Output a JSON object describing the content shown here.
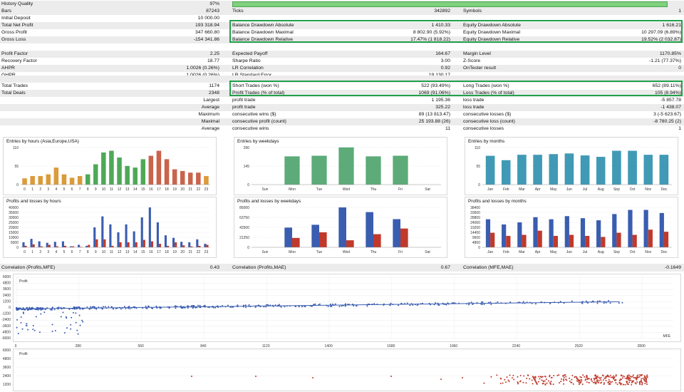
{
  "history_quality": {
    "label": "History Quality",
    "value": "97%",
    "level": 0.97
  },
  "rows": [
    {
      "c1l": "Bars",
      "c1v": "87243",
      "c2l": "Ticks",
      "c2v": "342892",
      "c3l": "Symbols",
      "c3v": "1"
    },
    {
      "c1l": "Initial Deposit",
      "c1v": "10 000.00",
      "c2l": "",
      "c2v": "",
      "c3l": "",
      "c3v": ""
    },
    {
      "c1l": "Total Net Profit",
      "c1v": "193 318.94",
      "c2l": "Balance Drawdown Absolute",
      "c2v": "1 410.33",
      "c3l": "Equity Drawdown Absolute",
      "c3v": "1 616.21"
    },
    {
      "c1l": "Gross Profit",
      "c1v": "347 660.80",
      "c2l": "Balance Drawdown Maximal",
      "c2v": "8 802.90 (5.92%)",
      "c3l": "Equity Drawdown Maximal",
      "c3v": "10 297.09 (6.89%)"
    },
    {
      "c1l": "Gross Loss",
      "c1v": "-154 341.86",
      "c2l": "Balance Drawdown Relative",
      "c2v": "17.47% (1 818.22)",
      "c3l": "Equity Drawdown Relative",
      "c3v": "19.52% (2 032.87)"
    },
    {
      "c1l": "",
      "c1v": "",
      "c2l": "",
      "c2v": "",
      "c3l": "",
      "c3v": ""
    },
    {
      "c1l": "Profit Factor",
      "c1v": "2.25",
      "c2l": "Expected Payoff",
      "c2v": "164.67",
      "c3l": "Margin Level",
      "c3v": "1170.85%"
    },
    {
      "c1l": "Recovery Factor",
      "c1v": "18.77",
      "c2l": "Sharpe Ratio",
      "c2v": "3.00",
      "c3l": "Z-Score",
      "c3v": "-1.21 (77.37%)"
    },
    {
      "c1l": "AHPR",
      "c1v": "1.0026 (0.26%)",
      "c2l": "LR Correlation",
      "c2v": "0.92",
      "c3l": "OnTester result",
      "c3v": "0"
    },
    {
      "c1l": "GHPR",
      "c1v": "1.0026 (0.26%)",
      "c2l": "LR Standard Error",
      "c2v": "19 130.17",
      "c3l": "",
      "c3v": ""
    },
    {
      "c1l": "",
      "c1v": "",
      "c2l": "",
      "c2v": "",
      "c3l": "",
      "c3v": ""
    },
    {
      "c1l": "Total Trades",
      "c1v": "1174",
      "c2l": "Short Trades (won %)",
      "c2v": "522 (93.49%)",
      "c3l": "Long Trades (won %)",
      "c3v": "652 (89.11%)"
    },
    {
      "c1l": "Total Deals",
      "c1v": "2348",
      "c2l": "Profit Trades (% of total)",
      "c2v": "1069 (91.06%)",
      "c3l": "Loss Trades (% of total)",
      "c3v": "105 (8.94%)"
    },
    {
      "c1l": "",
      "c1v": "Largest",
      "c2l": "profit trade",
      "c2v": "1 195.36",
      "c3l": "loss trade",
      "c3v": "-5 857.78"
    },
    {
      "c1l": "",
      "c1v": "Average",
      "c2l": "profit trade",
      "c2v": "325.22",
      "c3l": "loss trade",
      "c3v": "-1 438.07"
    },
    {
      "c1l": "",
      "c1v": "Maximum",
      "c2l": "consecutive wins ($)",
      "c2v": "89 (13 813.47)",
      "c3l": "consecutive losses ($)",
      "c3v": "3 (-5 623.67)"
    },
    {
      "c1l": "",
      "c1v": "Maximal",
      "c2l": "consecutive profit (count)",
      "c2v": "25 193.88 (26)",
      "c3l": "consecutive loss (count)",
      "c3v": "-8 780.25 (2)"
    },
    {
      "c1l": "",
      "c1v": "Average",
      "c2l": "consecutive wins",
      "c2v": "11",
      "c3l": "consecutive losses",
      "c3v": "1"
    }
  ],
  "chart_data": [
    {
      "type": "bar",
      "title": "Entries by hours (Asia,Europe,USA)",
      "categories": [
        "0",
        "1",
        "2",
        "3",
        "4",
        "5",
        "6",
        "7",
        "8",
        "9",
        "10",
        "11",
        "12",
        "13",
        "14",
        "15",
        "16",
        "17",
        "18",
        "19",
        "20",
        "21",
        "22",
        "23"
      ],
      "values": [
        18,
        25,
        25,
        30,
        50,
        30,
        20,
        25,
        30,
        60,
        95,
        100,
        80,
        55,
        50,
        75,
        85,
        100,
        75,
        45,
        40,
        35,
        35,
        25
      ],
      "yticks": [
        0,
        55,
        110
      ],
      "ylim": [
        0,
        110
      ],
      "colors": [
        "#d58a18",
        "#d58a18",
        "#d58a18",
        "#d58a18",
        "#d58a18",
        "#d58a18",
        "#d58a18",
        "#d58a18",
        "#2f9a38",
        "#2f9a38",
        "#2f9a38",
        "#2f9a38",
        "#2f9a38",
        "#2f9a38",
        "#2f9a38",
        "#2f9a38",
        "#c0492c",
        "#c0492c",
        "#c0492c",
        "#c0492c",
        "#c0492c",
        "#c0492c",
        "#c0492c",
        "#d58a18"
      ]
    },
    {
      "type": "bar",
      "title": "Entries by weekdays",
      "categories": [
        "Sun",
        "Mon",
        "Tue",
        "Wed",
        "Thu",
        "Fri",
        "Sat"
      ],
      "values": [
        0,
        220,
        225,
        290,
        220,
        225,
        0
      ],
      "yticks": [
        0,
        145,
        290
      ],
      "ylim": [
        0,
        290
      ],
      "colors": [
        "#3f9c60",
        "#3f9c60",
        "#3f9c60",
        "#3f9c60",
        "#3f9c60",
        "#3f9c60",
        "#3f9c60"
      ]
    },
    {
      "type": "bar",
      "title": "Entries by months",
      "categories": [
        "Jan",
        "Feb",
        "Mar",
        "Apr",
        "May",
        "Jun",
        "Jul",
        "Aug",
        "Sep",
        "Oct",
        "Nov",
        "Dec"
      ],
      "values": [
        85,
        72,
        88,
        88,
        90,
        92,
        86,
        82,
        100,
        100,
        88,
        88
      ],
      "yticks": [
        0,
        55,
        110
      ],
      "ylim": [
        0,
        110
      ],
      "colors": [
        "#1f88a8",
        "#1f88a8",
        "#1f88a8",
        "#1f88a8",
        "#1f88a8",
        "#1f88a8",
        "#1f88a8",
        "#1f88a8",
        "#1f88a8",
        "#1f88a8",
        "#1f88a8",
        "#1f88a8"
      ]
    },
    {
      "type": "bar",
      "title": "Profits and losses by hours",
      "categories": [
        "0",
        "1",
        "2",
        "3",
        "4",
        "5",
        "6",
        "7",
        "8",
        "9",
        "10",
        "11",
        "12",
        "13",
        "14",
        "15",
        "16",
        "17",
        "18",
        "19",
        "20",
        "21",
        "22",
        "23"
      ],
      "series": [
        {
          "name": "profit",
          "values": [
            5000,
            8500,
            6000,
            4500,
            5500,
            6000,
            1000,
            2500,
            1500,
            20000,
            31000,
            23000,
            15000,
            23000,
            16000,
            30000,
            40000,
            25000,
            12000,
            9500,
            5500,
            5000,
            8000,
            3500
          ],
          "color": "#3a5db0"
        },
        {
          "name": "loss",
          "values": [
            1500,
            3000,
            1000,
            2500,
            1000,
            1500,
            1000,
            500,
            2500,
            8000,
            8000,
            1500,
            5000,
            5000,
            5000,
            7500,
            6000,
            3500,
            1500,
            5000,
            2000,
            1000,
            1500,
            2500
          ],
          "color": "#c0392b"
        }
      ],
      "yticks": [
        0,
        5000,
        10000,
        15000,
        20000,
        25000,
        30000,
        35000,
        40000
      ],
      "ylim": [
        0,
        40000
      ]
    },
    {
      "type": "bar",
      "title": "Profits and losses by weekdays",
      "categories": [
        "Sun",
        "Mon",
        "Tue",
        "Wed",
        "Thu",
        "Fri",
        "Sat"
      ],
      "series": [
        {
          "name": "profit",
          "values": [
            0,
            42000,
            48000,
            85000,
            75000,
            60000,
            0
          ],
          "color": "#3a5db0"
        },
        {
          "name": "loss",
          "values": [
            0,
            20000,
            32000,
            15000,
            28000,
            40000,
            0
          ],
          "color": "#c0392b"
        }
      ],
      "yticks": [
        0,
        21250,
        42500,
        63750,
        85000
      ],
      "ylim": [
        0,
        85000
      ]
    },
    {
      "type": "bar",
      "title": "Profits and losses by months",
      "categories": [
        "Jan",
        "Feb",
        "Mar",
        "Apr",
        "May",
        "Jun",
        "Jul",
        "Aug",
        "Sep",
        "Oct",
        "Nov",
        "Dec"
      ],
      "series": [
        {
          "name": "profit",
          "values": [
            27000,
            22000,
            24000,
            29000,
            27000,
            30000,
            28000,
            26000,
            32000,
            36000,
            36000,
            33000
          ],
          "color": "#3a5db0"
        },
        {
          "name": "loss",
          "values": [
            14000,
            11000,
            12000,
            16000,
            11000,
            12000,
            11000,
            10000,
            14000,
            12000,
            17000,
            15000
          ],
          "color": "#c0392b"
        }
      ],
      "yticks": [
        0,
        4800,
        9600,
        14400,
        19200,
        24000,
        28800,
        33600,
        38400
      ],
      "ylim": [
        0,
        38400
      ]
    },
    {
      "type": "scatter",
      "title": "Correlation (Profits,MFE)",
      "ylabel": "Profit",
      "xlabel": "MFE",
      "xticks": [
        0,
        280,
        560,
        840,
        1120,
        1400,
        1680,
        1960,
        2240,
        2520,
        2800
      ],
      "yticks": [
        -6000,
        -4800,
        -3600,
        -2400,
        -1200,
        0,
        1200,
        2400,
        3600,
        4800,
        6000
      ],
      "xlim": [
        0,
        2940
      ],
      "ylim": [
        -6000,
        6000
      ],
      "color": "#3a5db0",
      "trend": [
        [
          0,
          -200
        ],
        [
          2700,
          1200
        ]
      ]
    },
    {
      "type": "scatter",
      "title": "Correlation (Profits,MAE)",
      "ylabel": "Profit",
      "yticks": [
        -1200,
        0,
        1200,
        2400,
        3600,
        4800,
        6000
      ],
      "color": "#c0392b"
    }
  ],
  "correlation": [
    {
      "label": "Correlation (Profits,MFE)",
      "value": "0.43"
    },
    {
      "label": "Correlation (Profits,MAE)",
      "value": "0.67"
    },
    {
      "label": "Correlation (MFE,MAE)",
      "value": "-0.1649"
    }
  ],
  "colors": {
    "accent_box": "#21a04a",
    "quality_bar": "#7fd07f",
    "row_shade": "#ececec"
  }
}
